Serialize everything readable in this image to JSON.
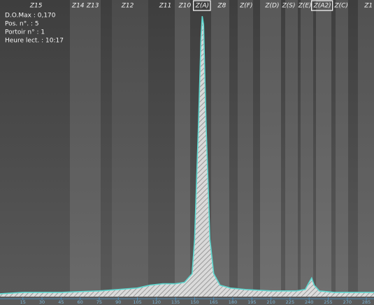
{
  "chart_data": {
    "type": "line",
    "info": [
      "D.O.Max : 0,170",
      "Pos. n°. : 5",
      "Portoir n° : 1",
      "Heure lect. : 10:17"
    ],
    "zones": [
      {
        "label": "Z15",
        "x": 25.4
      },
      {
        "label": "Z14",
        "x": 58.4
      },
      {
        "label": "Z13",
        "x": 69.9
      },
      {
        "label": "Z12",
        "x": 97.3
      },
      {
        "label": "Z11",
        "x": 127
      },
      {
        "label": "Z10",
        "x": 142.3
      },
      {
        "label": "Z(A)",
        "x": 156,
        "boxed": true
      },
      {
        "label": "Z8",
        "x": 171.4
      },
      {
        "label": "Z(F)",
        "x": 190.6
      },
      {
        "label": "Z(D)",
        "x": 211
      },
      {
        "label": "Z(S)",
        "x": 224
      },
      {
        "label": "Z(E)",
        "x": 236.7
      },
      {
        "label": "Z(A2)",
        "x": 250.4,
        "boxed": true
      },
      {
        "label": "Z(C)",
        "x": 265.3
      },
      {
        "label": "Z1",
        "x": 286.7
      }
    ],
    "x": [
      -3,
      15,
      45,
      75,
      90,
      105,
      115,
      125,
      135,
      142,
      148,
      150,
      153,
      155,
      156,
      157,
      159,
      162,
      165,
      170,
      178,
      190,
      210,
      230,
      237,
      240,
      242,
      244,
      248,
      260,
      291
    ],
    "y": [
      1,
      1.5,
      1.5,
      2,
      2.5,
      3,
      4,
      4.5,
      4.5,
      5,
      8,
      20,
      60,
      90,
      98,
      95,
      60,
      20,
      8,
      4,
      3,
      2.5,
      2,
      2,
      2.5,
      5,
      6.5,
      4,
      2,
      1.5,
      1.5
    ],
    "color": "#5fd8d0",
    "xlim": [
      -3,
      291
    ],
    "ylim": [
      0,
      100
    ],
    "xticks": [
      15,
      30,
      45,
      60,
      75,
      90,
      105,
      120,
      135,
      150,
      165,
      180,
      195,
      210,
      225,
      240,
      255,
      270,
      285
    ]
  }
}
